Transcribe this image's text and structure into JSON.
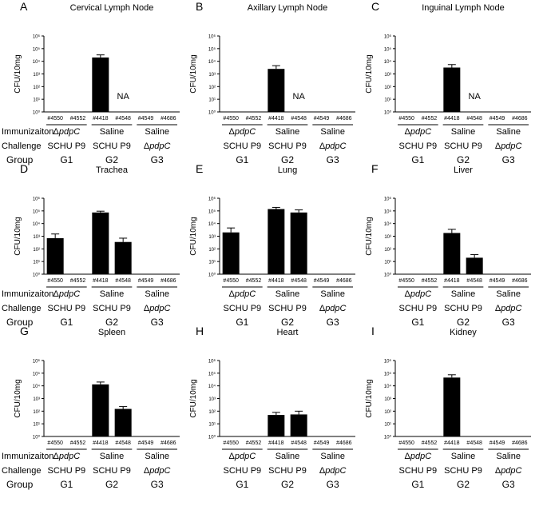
{
  "row_labels": {
    "immunization": "Immunizaiton",
    "challenge": "Challenge",
    "group": "Group"
  },
  "groups": [
    {
      "immunization_prefix": "Δ",
      "immunization_italic": "pdpC",
      "immunization": "",
      "challenge_prefix": "",
      "challenge_italic": "",
      "challenge": "SCHU P9",
      "name": "G1"
    },
    {
      "immunization_prefix": "",
      "immunization_italic": "",
      "immunization": "Saline",
      "challenge_prefix": "",
      "challenge_italic": "",
      "challenge": "SCHU P9",
      "name": "G2"
    },
    {
      "immunization_prefix": "",
      "immunization_italic": "",
      "immunization": "Saline",
      "challenge_prefix": "Δ",
      "challenge_italic": "pdpC",
      "challenge": "",
      "name": "G3"
    }
  ],
  "chart_data": [
    {
      "panel": "A",
      "title": "Cervical Lymph Node",
      "type": "bar",
      "scale": "log10",
      "ylabel": "CFU/10mg",
      "ylim": [
        1,
        1000000
      ],
      "yticks": [
        "10⁰",
        "10¹",
        "10²",
        "10³",
        "10⁴",
        "10⁵",
        "10⁶"
      ],
      "categories": [
        "#4550",
        "#4552",
        "#4418",
        "#4548",
        "#4549",
        "#4686"
      ],
      "values": [
        null,
        null,
        20000,
        null,
        null,
        null
      ],
      "errors": [
        null,
        null,
        32000,
        null,
        null,
        null
      ],
      "annotation": {
        "text": "NA",
        "category_index": 3
      }
    },
    {
      "panel": "B",
      "title": "Axillary Lymph Node",
      "type": "bar",
      "scale": "log10",
      "ylabel": "CFU/10mg",
      "ylim": [
        1,
        1000000
      ],
      "yticks": [
        "10⁰",
        "10¹",
        "10²",
        "10³",
        "10⁴",
        "10⁵",
        "10⁶"
      ],
      "categories": [
        "#4550",
        "#4552",
        "#4418",
        "#4548",
        "#4549",
        "#4686"
      ],
      "values": [
        null,
        null,
        2500,
        null,
        null,
        null
      ],
      "errors": [
        null,
        null,
        4500,
        null,
        null,
        null
      ],
      "annotation": {
        "text": "NA",
        "category_index": 3
      }
    },
    {
      "panel": "C",
      "title": "Inguinal Lymph Node",
      "type": "bar",
      "scale": "log10",
      "ylabel": "CFU/10mg",
      "ylim": [
        1,
        1000000
      ],
      "yticks": [
        "10⁰",
        "10¹",
        "10²",
        "10³",
        "10⁴",
        "10⁵",
        "10⁶"
      ],
      "categories": [
        "#4550",
        "#4552",
        "#4418",
        "#4548",
        "#4549",
        "#4686"
      ],
      "values": [
        null,
        null,
        3200,
        null,
        null,
        null
      ],
      "errors": [
        null,
        null,
        5500,
        null,
        null,
        null
      ],
      "annotation": {
        "text": "NA",
        "category_index": 3
      }
    },
    {
      "panel": "D",
      "title": "Trachea",
      "type": "bar",
      "scale": "log10",
      "ylabel": "CFU/10mg",
      "ylim": [
        1,
        1000000
      ],
      "yticks": [
        "10⁰",
        "10¹",
        "10²",
        "10³",
        "10⁴",
        "10⁵",
        "10⁶"
      ],
      "categories": [
        "#4550",
        "#4552",
        "#4418",
        "#4548",
        "#4549",
        "#4686"
      ],
      "values": [
        700,
        null,
        75000,
        350,
        null,
        null
      ],
      "errors": [
        1500,
        null,
        95000,
        700,
        null,
        null
      ],
      "annotation": null
    },
    {
      "panel": "E",
      "title": "Lung",
      "type": "bar",
      "scale": "log10",
      "ylabel": "CFU/10mg",
      "ylim": [
        1,
        1000000
      ],
      "yticks": [
        "10⁰",
        "10¹",
        "10²",
        "10³",
        "10⁴",
        "10⁵",
        "10⁶"
      ],
      "categories": [
        "#4550",
        "#4552",
        "#4418",
        "#4548",
        "#4549",
        "#4686"
      ],
      "values": [
        2000,
        null,
        140000,
        75000,
        null,
        null
      ],
      "errors": [
        4500,
        null,
        190000,
        120000,
        null,
        null
      ],
      "annotation": null
    },
    {
      "panel": "F",
      "title": "Liver",
      "type": "bar",
      "scale": "log10",
      "ylabel": "CFU/10mg",
      "ylim": [
        1,
        1000000
      ],
      "yticks": [
        "10⁰",
        "10¹",
        "10²",
        "10³",
        "10⁴",
        "10⁵",
        "10⁶"
      ],
      "categories": [
        "#4550",
        "#4552",
        "#4418",
        "#4548",
        "#4549",
        "#4686"
      ],
      "values": [
        null,
        null,
        1800,
        20,
        null,
        null
      ],
      "errors": [
        null,
        null,
        3500,
        35,
        null,
        null
      ],
      "annotation": null
    },
    {
      "panel": "G",
      "title": "Spleen",
      "type": "bar",
      "scale": "log10",
      "ylabel": "CFU/10mg",
      "ylim": [
        1,
        1000000
      ],
      "yticks": [
        "10⁰",
        "10¹",
        "10²",
        "10³",
        "10⁴",
        "10⁵",
        "10⁶"
      ],
      "categories": [
        "#4550",
        "#4552",
        "#4418",
        "#4548",
        "#4549",
        "#4686"
      ],
      "values": [
        null,
        null,
        13000,
        150,
        null,
        null
      ],
      "errors": [
        null,
        null,
        20000,
        230,
        null,
        null
      ],
      "annotation": null
    },
    {
      "panel": "H",
      "title": "Heart",
      "type": "bar",
      "scale": "log10",
      "ylabel": "CFU/10mg",
      "ylim": [
        1,
        1000000
      ],
      "yticks": [
        "10⁰",
        "10¹",
        "10²",
        "10³",
        "10⁴",
        "10⁵",
        "10⁶"
      ],
      "categories": [
        "#4550",
        "#4552",
        "#4418",
        "#4548",
        "#4549",
        "#4686"
      ],
      "values": [
        null,
        null,
        50,
        55,
        null,
        null
      ],
      "errors": [
        null,
        null,
        80,
        100,
        null,
        null
      ],
      "annotation": null
    },
    {
      "panel": "I",
      "title": "Kidney",
      "type": "bar",
      "scale": "log10",
      "ylabel": "CFU/10mg",
      "ylim": [
        1,
        1000000
      ],
      "yticks": [
        "10⁰",
        "10¹",
        "10²",
        "10³",
        "10⁴",
        "10⁵",
        "10⁶"
      ],
      "categories": [
        "#4550",
        "#4552",
        "#4418",
        "#4548",
        "#4549",
        "#4686"
      ],
      "values": [
        null,
        null,
        45000,
        null,
        null,
        null
      ],
      "errors": [
        null,
        null,
        75000,
        null,
        null,
        null
      ],
      "annotation": null
    }
  ]
}
